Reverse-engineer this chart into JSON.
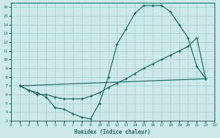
{
  "xlabel": "Humidex (Indice chaleur)",
  "bg_color": "#cce8e8",
  "line_color": "#1a6b6b",
  "grid_color": "#aacfcf",
  "xlim": [
    0,
    23
  ],
  "ylim": [
    3,
    16.5
  ],
  "xticks": [
    0,
    1,
    2,
    3,
    4,
    5,
    6,
    7,
    8,
    9,
    10,
    11,
    12,
    13,
    14,
    15,
    16,
    17,
    18,
    19,
    20,
    21,
    22,
    23
  ],
  "yticks": [
    3,
    4,
    5,
    6,
    7,
    8,
    9,
    10,
    11,
    12,
    13,
    14,
    15,
    16
  ],
  "series1_x": [
    1,
    2,
    3,
    4,
    5,
    6,
    7,
    8,
    9,
    10,
    11,
    12,
    13,
    14,
    15,
    16,
    17,
    18,
    19,
    20,
    21,
    22
  ],
  "series1_y": [
    7.0,
    6.5,
    6.2,
    5.7,
    4.5,
    4.3,
    3.8,
    3.4,
    3.2,
    5.0,
    8.0,
    11.8,
    13.5,
    15.3,
    16.2,
    16.2,
    16.2,
    15.5,
    14.0,
    12.5,
    9.2,
    7.8
  ],
  "series2_x": [
    1,
    2,
    3,
    4,
    5,
    6,
    7,
    8,
    9,
    10,
    11,
    12,
    13,
    14,
    15,
    16,
    17,
    18,
    19,
    20,
    21,
    22
  ],
  "series2_y": [
    7.0,
    6.5,
    6.0,
    6.0,
    5.7,
    5.5,
    5.5,
    5.5,
    5.8,
    6.2,
    6.8,
    7.3,
    7.8,
    8.4,
    9.0,
    9.5,
    10.0,
    10.5,
    11.0,
    11.5,
    12.5,
    7.8
  ],
  "series3_x": [
    1,
    22
  ],
  "series3_y": [
    7.0,
    7.8
  ]
}
